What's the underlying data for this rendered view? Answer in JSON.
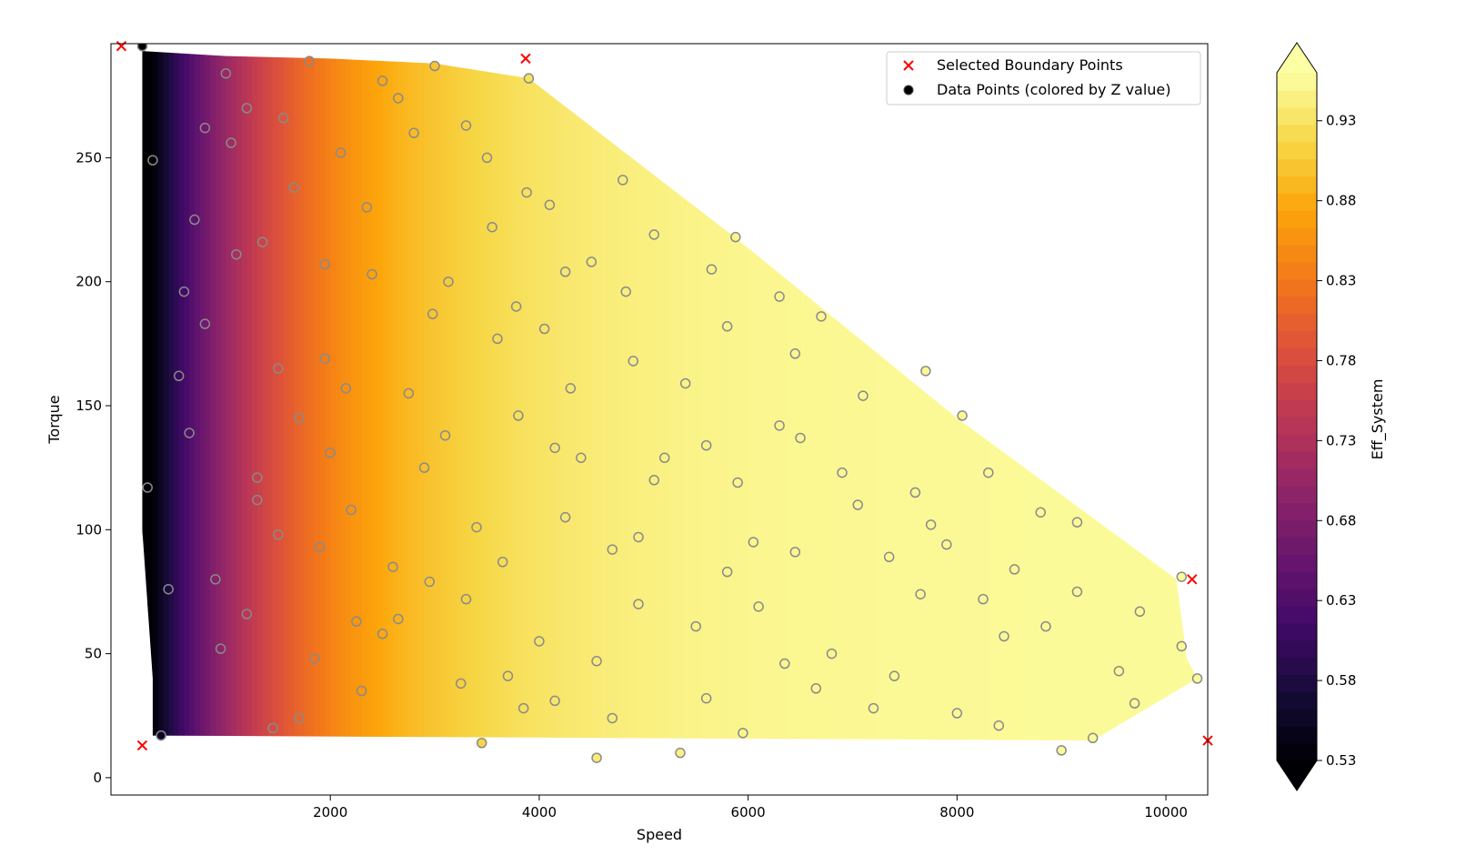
{
  "chart_data": {
    "type": "scatter",
    "title": "",
    "xlabel": "Speed",
    "ylabel": "Torque",
    "xlim": [
      -100,
      10400
    ],
    "ylim": [
      -7,
      296
    ],
    "x_ticks": [
      2000,
      4000,
      6000,
      8000,
      10000
    ],
    "y_ticks": [
      0,
      50,
      100,
      150,
      200,
      250
    ],
    "x_tick_labels": [
      "2000",
      "4000",
      "6000",
      "8000",
      "10000"
    ],
    "y_tick_labels": [
      "0",
      "50",
      "100",
      "150",
      "200",
      "250"
    ],
    "grid": false,
    "legend_position": "top-right",
    "legend": [
      {
        "label": "Selected Boundary Points",
        "marker": "x",
        "color": "#ff0000"
      },
      {
        "label": "Data Points (colored by Z value)",
        "marker": "circle",
        "color": "#000004"
      }
    ],
    "contour": {
      "colormap": "inferno",
      "description": "Filled contour of Eff_System over Speed/Torque; efficiency rises from ~0.53 at low speed to ~0.95 at high speed",
      "boundary": [
        [
          200,
          293
        ],
        [
          1000,
          291
        ],
        [
          2000,
          290
        ],
        [
          3000,
          288
        ],
        [
          3900,
          282
        ],
        [
          5900,
          217
        ],
        [
          8000,
          145
        ],
        [
          10100,
          80
        ],
        [
          10200,
          48
        ],
        [
          10300,
          40
        ],
        [
          9300,
          15
        ],
        [
          300,
          17
        ],
        [
          300,
          40
        ],
        [
          200,
          100
        ],
        [
          200,
          240
        ]
      ]
    },
    "colorbar": {
      "label": "Eff_System",
      "min": 0.53,
      "max": 0.96,
      "ticks": [
        0.53,
        0.58,
        0.63,
        0.68,
        0.73,
        0.78,
        0.83,
        0.88,
        0.93
      ],
      "tick_labels": [
        "0.53",
        "0.58",
        "0.63",
        "0.68",
        "0.73",
        "0.78",
        "0.83",
        "0.88",
        "0.93"
      ],
      "extend": "both"
    },
    "series": [
      {
        "name": "Selected Boundary Points",
        "marker": "x",
        "color": "#ff0000",
        "points": [
          [
            0,
            295
          ],
          [
            3870,
            290
          ],
          [
            10250,
            80
          ],
          [
            10400,
            15
          ],
          [
            200,
            13
          ]
        ]
      },
      {
        "name": "Data Points (colored by Z value)",
        "marker": "circle",
        "points": [
          [
            200,
            295
          ],
          [
            300,
            249
          ],
          [
            380,
            17
          ],
          [
            1000,
            284
          ],
          [
            1800,
            289
          ],
          [
            3000,
            287
          ],
          [
            3900,
            282
          ],
          [
            2500,
            281
          ],
          [
            2650,
            274
          ],
          [
            800,
            262
          ],
          [
            1200,
            270
          ],
          [
            1550,
            266
          ],
          [
            2800,
            260
          ],
          [
            3300,
            263
          ],
          [
            1050,
            256
          ],
          [
            2100,
            252
          ],
          [
            3500,
            250
          ],
          [
            1650,
            238
          ],
          [
            3880,
            236
          ],
          [
            4100,
            231
          ],
          [
            2350,
            230
          ],
          [
            4800,
            241
          ],
          [
            700,
            225
          ],
          [
            3550,
            222
          ],
          [
            5100,
            219
          ],
          [
            5880,
            218
          ],
          [
            1100,
            211
          ],
          [
            1350,
            216
          ],
          [
            1950,
            207
          ],
          [
            4500,
            208
          ],
          [
            5650,
            205
          ],
          [
            4250,
            204
          ],
          [
            2400,
            203
          ],
          [
            3130,
            200
          ],
          [
            600,
            196
          ],
          [
            4830,
            196
          ],
          [
            6300,
            194
          ],
          [
            800,
            183
          ],
          [
            2980,
            187
          ],
          [
            3780,
            190
          ],
          [
            4050,
            181
          ],
          [
            5800,
            182
          ],
          [
            6700,
            186
          ],
          [
            3600,
            177
          ],
          [
            6450,
            171
          ],
          [
            1500,
            165
          ],
          [
            4900,
            168
          ],
          [
            550,
            162
          ],
          [
            7700,
            164
          ],
          [
            1950,
            169
          ],
          [
            4300,
            157
          ],
          [
            5400,
            159
          ],
          [
            2150,
            157
          ],
          [
            2750,
            155
          ],
          [
            7100,
            154
          ],
          [
            3800,
            146
          ],
          [
            1700,
            145
          ],
          [
            8050,
            146
          ],
          [
            6300,
            142
          ],
          [
            650,
            139
          ],
          [
            3100,
            138
          ],
          [
            5600,
            134
          ],
          [
            6500,
            137
          ],
          [
            4150,
            133
          ],
          [
            2000,
            131
          ],
          [
            4400,
            129
          ],
          [
            5200,
            129
          ],
          [
            1300,
            121
          ],
          [
            2900,
            125
          ],
          [
            6900,
            123
          ],
          [
            8300,
            123
          ],
          [
            250,
            117
          ],
          [
            5100,
            120
          ],
          [
            5900,
            119
          ],
          [
            1300,
            112
          ],
          [
            7600,
            115
          ],
          [
            7050,
            110
          ],
          [
            2200,
            108
          ],
          [
            8800,
            107
          ],
          [
            9150,
            103
          ],
          [
            4250,
            105
          ],
          [
            7750,
            102
          ],
          [
            3400,
            101
          ],
          [
            1500,
            98
          ],
          [
            6050,
            95
          ],
          [
            4950,
            97
          ],
          [
            7900,
            94
          ],
          [
            1900,
            93
          ],
          [
            4700,
            92
          ],
          [
            6450,
            91
          ],
          [
            3650,
            87
          ],
          [
            7350,
            89
          ],
          [
            2600,
            85
          ],
          [
            5800,
            83
          ],
          [
            8550,
            84
          ],
          [
            900,
            80
          ],
          [
            10150,
            81
          ],
          [
            2950,
            79
          ],
          [
            450,
            76
          ],
          [
            9150,
            75
          ],
          [
            7650,
            74
          ],
          [
            3300,
            72
          ],
          [
            8250,
            72
          ],
          [
            4950,
            70
          ],
          [
            6100,
            69
          ],
          [
            9750,
            67
          ],
          [
            1200,
            66
          ],
          [
            2650,
            64
          ],
          [
            2250,
            63
          ],
          [
            8850,
            61
          ],
          [
            5500,
            61
          ],
          [
            2500,
            58
          ],
          [
            8450,
            57
          ],
          [
            950,
            52
          ],
          [
            4000,
            55
          ],
          [
            10150,
            53
          ],
          [
            6800,
            50
          ],
          [
            1850,
            48
          ],
          [
            4550,
            47
          ],
          [
            6350,
            46
          ],
          [
            9550,
            43
          ],
          [
            7400,
            41
          ],
          [
            3700,
            41
          ],
          [
            10300,
            40
          ],
          [
            3250,
            38
          ],
          [
            6650,
            36
          ],
          [
            2300,
            35
          ],
          [
            5600,
            32
          ],
          [
            4150,
            31
          ],
          [
            9700,
            30
          ],
          [
            7200,
            28
          ],
          [
            3850,
            28
          ],
          [
            8000,
            26
          ],
          [
            1700,
            24
          ],
          [
            4700,
            24
          ],
          [
            8400,
            21
          ],
          [
            1450,
            20
          ],
          [
            5950,
            18
          ],
          [
            9300,
            16
          ],
          [
            3450,
            14
          ],
          [
            9000,
            11
          ],
          [
            5350,
            10
          ],
          [
            4550,
            8
          ]
        ]
      }
    ]
  }
}
